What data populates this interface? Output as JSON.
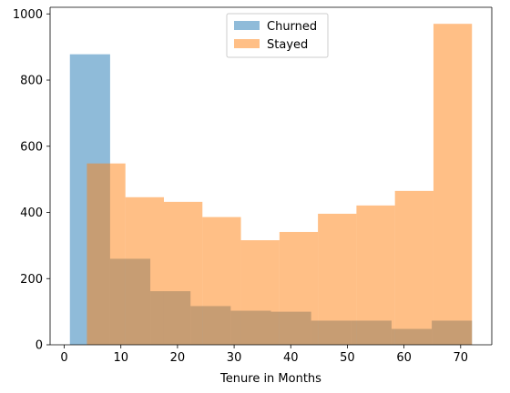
{
  "chart_data": {
    "type": "bar",
    "subtype": "overlapping-histogram",
    "title": "",
    "xlabel": "Tenure in Months",
    "ylabel": "",
    "xlim": [
      -2.5,
      75.5
    ],
    "ylim": [
      0,
      1020
    ],
    "xticks": [
      0,
      10,
      20,
      30,
      40,
      50,
      60,
      70
    ],
    "yticks": [
      0,
      200,
      400,
      600,
      800,
      1000
    ],
    "grid": false,
    "legend_position": "top-center",
    "series": [
      {
        "name": "Churned",
        "color": "#1f77b4",
        "alpha": 0.5,
        "bins": [
          1.0,
          8.1,
          15.2,
          22.3,
          29.4,
          36.5,
          43.6,
          50.7,
          57.8,
          64.9,
          72.0
        ],
        "values": [
          878,
          260,
          162,
          117,
          103,
          100,
          73,
          73,
          48,
          73
        ]
      },
      {
        "name": "Stayed",
        "color": "#ff7f0e",
        "alpha": 0.5,
        "bins": [
          4.0,
          10.8,
          17.6,
          24.4,
          31.2,
          38.0,
          44.8,
          51.6,
          58.4,
          65.2,
          72.0
        ],
        "values": [
          548,
          446,
          432,
          386,
          316,
          341,
          396,
          421,
          465,
          970
        ]
      }
    ]
  }
}
